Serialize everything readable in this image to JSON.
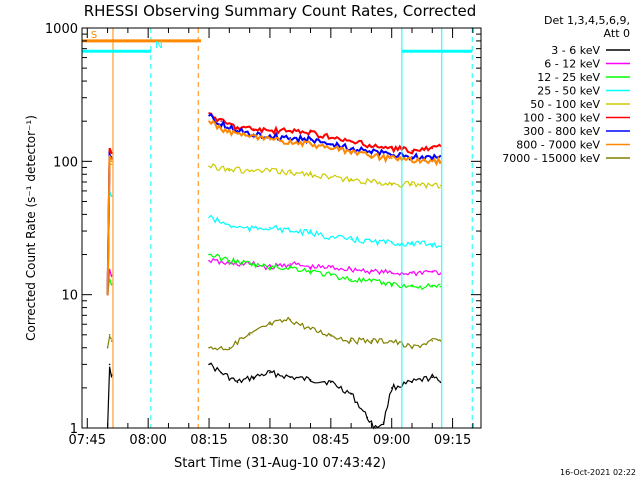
{
  "chart_data": {
    "type": "line",
    "title": "RHESSI Observing Summary Count Rates, Corrected",
    "xlabel": "Start Time (31-Aug-10 07:43:42)",
    "ylabel": "Corrected Count Rate (s⁻¹ detector⁻¹)",
    "yscale": "log",
    "ylim": [
      1,
      1000
    ],
    "xlim": [
      "07:43:42",
      "09:22:00"
    ],
    "x_ticks": [
      "07:45",
      "08:00",
      "08:15",
      "08:30",
      "08:45",
      "09:00",
      "09:15"
    ],
    "y_ticks": [
      "1",
      "10",
      "100",
      "1000"
    ],
    "grid": false,
    "legend_position": "top-right",
    "legend_header": [
      "Det 1,3,4,5,6,9,",
      "Att 0"
    ],
    "footer_date": "16-Oct-2021 02:22",
    "series": [
      {
        "name": "3 - 6 keV",
        "color": "#000000",
        "x": [
          "07:50",
          "07:50:30",
          "07:51",
          "08:15",
          "08:18",
          "08:22",
          "08:26",
          "08:30",
          "08:35",
          "08:40",
          "08:45",
          "08:50",
          "08:54",
          "08:56",
          "08:58",
          "09:00",
          "09:05",
          "09:10",
          "09:12"
        ],
        "values": [
          1,
          3,
          2.5,
          3,
          2.6,
          2.2,
          2.4,
          2.6,
          2.4,
          2.3,
          2.2,
          1.8,
          1.2,
          1,
          1.1,
          2,
          2.2,
          2.4,
          2.2
        ]
      },
      {
        "name": "6 - 12 keV",
        "color": "#ff00ff",
        "x": [
          "07:50",
          "07:50:30",
          "07:51",
          "08:15",
          "08:20",
          "08:25",
          "08:30",
          "08:35",
          "08:40",
          "08:45",
          "08:50",
          "08:55",
          "09:00",
          "09:05",
          "09:10",
          "09:12"
        ],
        "values": [
          10,
          15,
          14,
          18,
          17,
          17,
          16,
          17,
          16,
          16,
          15.5,
          15,
          14.5,
          14.5,
          15,
          14.5
        ]
      },
      {
        "name": "12 - 25 keV",
        "color": "#00ff00",
        "x": [
          "07:50",
          "07:50:30",
          "07:51",
          "08:15",
          "08:20",
          "08:25",
          "08:30",
          "08:35",
          "08:40",
          "08:45",
          "08:50",
          "08:55",
          "09:00",
          "09:05",
          "09:10",
          "09:12"
        ],
        "values": [
          10,
          13,
          12,
          20,
          18,
          17,
          16,
          16,
          15,
          14,
          13,
          12.5,
          12,
          11.5,
          11.5,
          11.5
        ]
      },
      {
        "name": "25 - 50 keV",
        "color": "#00ffff",
        "x": [
          "07:50",
          "07:50:30",
          "07:51",
          "08:15",
          "08:20",
          "08:25",
          "08:30",
          "08:35",
          "08:40",
          "08:45",
          "08:50",
          "08:55",
          "09:00",
          "09:05",
          "09:10",
          "09:12"
        ],
        "values": [
          10,
          60,
          55,
          38,
          33,
          31,
          32,
          30,
          29,
          27,
          26,
          25,
          24.5,
          24,
          24,
          23
        ]
      },
      {
        "name": "50 - 100 keV",
        "color": "#cccc00",
        "x": [
          "07:50",
          "07:50:30",
          "07:51",
          "08:15",
          "08:20",
          "08:25",
          "08:30",
          "08:35",
          "08:40",
          "08:45",
          "08:50",
          "08:55",
          "09:00",
          "09:05",
          "09:10",
          "09:12"
        ],
        "values": [
          10,
          100,
          95,
          92,
          88,
          84,
          85,
          82,
          80,
          76,
          72,
          70,
          68,
          67,
          66,
          66
        ]
      },
      {
        "name": "100 - 300 keV",
        "color": "#ff0000",
        "x": [
          "07:50",
          "07:50:30",
          "07:51",
          "08:15",
          "08:18",
          "08:22",
          "08:26",
          "08:30",
          "08:35",
          "08:40",
          "08:45",
          "08:50",
          "08:55",
          "09:00",
          "09:05",
          "09:10",
          "09:12"
        ],
        "values": [
          10,
          120,
          115,
          230,
          200,
          180,
          175,
          170,
          168,
          165,
          150,
          140,
          130,
          125,
          120,
          125,
          130
        ]
      },
      {
        "name": "300 - 800 keV",
        "color": "#0000ff",
        "x": [
          "07:50",
          "07:50:30",
          "07:51",
          "08:15",
          "08:18",
          "08:22",
          "08:26",
          "08:30",
          "08:35",
          "08:40",
          "08:45",
          "08:50",
          "08:55",
          "09:00",
          "09:05",
          "09:10",
          "09:12"
        ],
        "values": [
          10,
          110,
          105,
          220,
          190,
          170,
          160,
          155,
          150,
          145,
          135,
          125,
          118,
          112,
          108,
          107,
          110
        ]
      },
      {
        "name": "800 - 7000 keV",
        "color": "#ff8800",
        "x": [
          "07:50",
          "07:50:30",
          "07:51",
          "08:15",
          "08:18",
          "08:22",
          "08:26",
          "08:30",
          "08:35",
          "08:40",
          "08:45",
          "08:50",
          "08:55",
          "09:00",
          "09:05",
          "09:10",
          "09:12"
        ],
        "values": [
          10,
          110,
          100,
          200,
          175,
          160,
          150,
          145,
          140,
          135,
          125,
          118,
          110,
          105,
          102,
          100,
          100
        ]
      },
      {
        "name": "7000 - 15000 keV",
        "color": "#808000",
        "x": [
          "07:50",
          "07:50:30",
          "07:51",
          "08:15",
          "08:20",
          "08:25",
          "08:30",
          "08:35",
          "08:40",
          "08:45",
          "08:50",
          "08:55",
          "09:00",
          "09:05",
          "09:10",
          "09:12"
        ],
        "values": [
          4,
          5,
          4.5,
          4,
          4,
          5,
          6,
          6.5,
          5.5,
          5,
          4.5,
          4.5,
          4.5,
          4,
          4.5,
          4.5
        ]
      }
    ],
    "annotations": {
      "bars": [
        {
          "label": "S",
          "color": "#ff8800",
          "start": "07:43:42",
          "end": "08:13:00",
          "level": 800
        },
        {
          "label": "N",
          "color": "#00ffff",
          "start": "07:43:42",
          "end": "08:00:40",
          "level": 670
        },
        {
          "label": "",
          "color": "#00ffff",
          "start": "09:02:30",
          "end": "09:19:50",
          "level": 670
        }
      ],
      "vlines": [
        {
          "time": "07:51:20",
          "color": "#ff8800",
          "style": "solid"
        },
        {
          "time": "08:12:20",
          "color": "#ff8800",
          "style": "dashed"
        },
        {
          "time": "08:00:40",
          "color": "#00ffff",
          "style": "dashed"
        },
        {
          "time": "09:02:30",
          "color": "#00ffff",
          "style": "solid"
        },
        {
          "time": "09:19:50",
          "color": "#00ffff",
          "style": "dashed"
        },
        {
          "time": "09:12:20",
          "color": "#00ffff",
          "style": "solid"
        }
      ]
    }
  }
}
